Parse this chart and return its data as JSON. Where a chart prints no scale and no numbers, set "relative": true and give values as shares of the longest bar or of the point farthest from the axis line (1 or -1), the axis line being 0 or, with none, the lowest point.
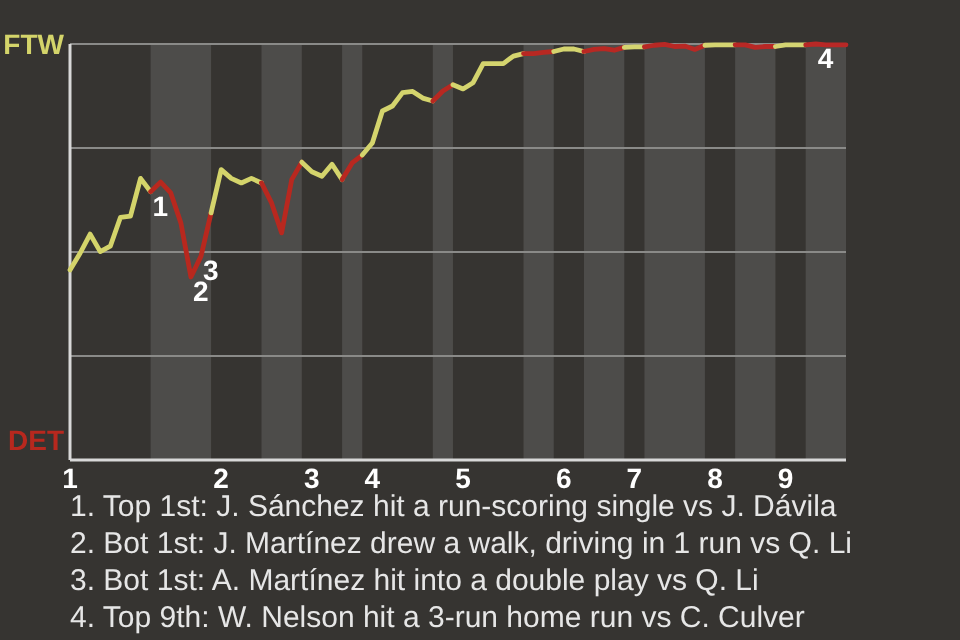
{
  "chart_data": {
    "type": "line",
    "relative": true,
    "grid": "y",
    "marker": "none",
    "line_style": "solid",
    "categories": [
      "1",
      null,
      null,
      null,
      null,
      null,
      null,
      null,
      null,
      null,
      null,
      null,
      null,
      null,
      null,
      "2",
      null,
      null,
      null,
      null,
      null,
      null,
      null,
      null,
      "3",
      null,
      null,
      null,
      null,
      null,
      "4",
      null,
      null,
      null,
      null,
      null,
      null,
      null,
      null,
      "5",
      null,
      null,
      null,
      null,
      null,
      null,
      null,
      null,
      null,
      "6",
      null,
      null,
      null,
      null,
      null,
      null,
      "7",
      null,
      null,
      null,
      null,
      null,
      null,
      null,
      "8",
      null,
      null,
      null,
      null,
      null,
      null,
      "9",
      null,
      null,
      null,
      null,
      null,
      null
    ],
    "series": [
      {
        "name": "FTW",
        "color": "#d4d46a",
        "values": [
          0.457,
          0.497,
          0.543,
          0.501,
          0.514,
          0.583,
          0.586,
          0.677,
          0.645,
          null,
          null,
          null,
          null,
          null,
          null,
          null,
          null,
          null,
          null,
          null,
          null,
          null,
          null,
          null,
          null,
          null,
          null,
          null,
          null,
          null,
          null,
          null,
          null,
          null,
          null,
          null,
          null,
          null,
          null,
          null,
          null,
          null,
          null,
          null,
          null,
          null,
          null,
          null,
          null,
          null,
          null,
          null,
          null,
          null,
          null,
          null,
          null,
          null,
          null,
          null,
          null,
          null,
          null,
          null,
          null,
          null,
          null,
          null,
          null,
          null,
          null,
          null,
          null,
          null,
          null,
          null,
          null,
          null
        ]
      },
      {
        "name": "DET",
        "color": "#b8281e",
        "values": [
          null,
          null,
          null,
          null,
          null,
          null,
          null,
          null,
          0.645,
          0.668,
          0.642,
          0.57,
          0.44,
          0.49,
          0.594,
          null,
          null,
          null,
          null,
          null,
          null,
          null,
          null,
          null,
          null,
          null,
          null,
          null,
          null,
          null,
          null,
          null,
          null,
          null,
          null,
          null,
          null,
          null,
          null,
          null,
          null,
          null,
          null,
          null,
          null,
          null,
          null,
          null,
          null,
          null,
          null,
          null,
          null,
          null,
          null,
          null,
          null,
          null,
          null,
          null,
          null,
          null,
          null,
          null,
          null,
          null,
          null,
          null,
          null,
          null,
          null,
          null,
          null,
          null,
          null,
          null,
          null,
          null
        ]
      },
      {
        "color": "#d4d46b",
        "values": [
          null,
          null,
          null,
          null,
          null,
          null,
          null,
          null,
          null,
          null,
          null,
          null,
          null,
          null,
          0.594,
          0.698,
          0.677,
          0.666,
          0.677,
          0.666,
          null,
          null,
          null,
          null,
          null,
          null,
          null,
          null,
          null,
          null,
          null,
          null,
          null,
          null,
          null,
          null,
          null,
          null,
          null,
          null,
          null,
          null,
          null,
          null,
          null,
          null,
          null,
          null,
          null,
          null,
          null,
          null,
          null,
          null,
          null,
          null,
          null,
          null,
          null,
          null,
          null,
          null,
          null,
          null,
          null,
          null,
          null,
          null,
          null,
          null,
          null,
          null,
          null,
          null,
          null,
          null,
          null,
          null
        ]
      },
      {
        "color": "#b8281f",
        "values": [
          null,
          null,
          null,
          null,
          null,
          null,
          null,
          null,
          null,
          null,
          null,
          null,
          null,
          null,
          null,
          null,
          null,
          null,
          null,
          0.666,
          0.618,
          0.546,
          0.674,
          0.716,
          null,
          null,
          null,
          null,
          null,
          null,
          null,
          null,
          null,
          null,
          null,
          null,
          null,
          null,
          null,
          null,
          null,
          null,
          null,
          null,
          null,
          null,
          null,
          null,
          null,
          null,
          null,
          null,
          null,
          null,
          null,
          null,
          null,
          null,
          null,
          null,
          null,
          null,
          null,
          null,
          null,
          null,
          null,
          null,
          null,
          null,
          null,
          null,
          null,
          null,
          null,
          null,
          null,
          null
        ]
      },
      {
        "color": "#d4d46c",
        "values": [
          null,
          null,
          null,
          null,
          null,
          null,
          null,
          null,
          null,
          null,
          null,
          null,
          null,
          null,
          null,
          null,
          null,
          null,
          null,
          null,
          null,
          null,
          null,
          0.716,
          0.693,
          0.682,
          0.711,
          0.674,
          null,
          null,
          null,
          null,
          null,
          null,
          null,
          null,
          null,
          null,
          null,
          null,
          null,
          null,
          null,
          null,
          null,
          null,
          null,
          null,
          null,
          null,
          null,
          null,
          null,
          null,
          null,
          null,
          null,
          null,
          null,
          null,
          null,
          null,
          null,
          null,
          null,
          null,
          null,
          null,
          null,
          null,
          null,
          null,
          null,
          null,
          null,
          null,
          null,
          null
        ]
      },
      {
        "color": "#b82820",
        "values": [
          null,
          null,
          null,
          null,
          null,
          null,
          null,
          null,
          null,
          null,
          null,
          null,
          null,
          null,
          null,
          null,
          null,
          null,
          null,
          null,
          null,
          null,
          null,
          null,
          null,
          null,
          null,
          0.674,
          0.714,
          0.733,
          null,
          null,
          null,
          null,
          null,
          null,
          null,
          null,
          null,
          null,
          null,
          null,
          null,
          null,
          null,
          null,
          null,
          null,
          null,
          null,
          null,
          null,
          null,
          null,
          null,
          null,
          null,
          null,
          null,
          null,
          null,
          null,
          null,
          null,
          null,
          null,
          null,
          null,
          null,
          null,
          null,
          null,
          null,
          null,
          null,
          null,
          null,
          null
        ]
      },
      {
        "color": "#d4d46d",
        "values": [
          null,
          null,
          null,
          null,
          null,
          null,
          null,
          null,
          null,
          null,
          null,
          null,
          null,
          null,
          null,
          null,
          null,
          null,
          null,
          null,
          null,
          null,
          null,
          null,
          null,
          null,
          null,
          null,
          null,
          0.733,
          0.762,
          0.839,
          0.851,
          0.883,
          0.886,
          0.87,
          0.863,
          null,
          null,
          null,
          null,
          null,
          null,
          null,
          null,
          null,
          null,
          null,
          null,
          null,
          null,
          null,
          null,
          null,
          null,
          null,
          null,
          null,
          null,
          null,
          null,
          null,
          null,
          null,
          null,
          null,
          null,
          null,
          null,
          null,
          null,
          null,
          null,
          null,
          null,
          null,
          null,
          null
        ]
      },
      {
        "color": "#b82821",
        "values": [
          null,
          null,
          null,
          null,
          null,
          null,
          null,
          null,
          null,
          null,
          null,
          null,
          null,
          null,
          null,
          null,
          null,
          null,
          null,
          null,
          null,
          null,
          null,
          null,
          null,
          null,
          null,
          null,
          null,
          null,
          null,
          null,
          null,
          null,
          null,
          null,
          0.863,
          0.887,
          0.902,
          null,
          null,
          null,
          null,
          null,
          null,
          null,
          null,
          null,
          null,
          null,
          null,
          null,
          null,
          null,
          null,
          null,
          null,
          null,
          null,
          null,
          null,
          null,
          null,
          null,
          null,
          null,
          null,
          null,
          null,
          null,
          null,
          null,
          null,
          null,
          null,
          null,
          null,
          null
        ]
      },
      {
        "color": "#d4d46e",
        "values": [
          null,
          null,
          null,
          null,
          null,
          null,
          null,
          null,
          null,
          null,
          null,
          null,
          null,
          null,
          null,
          null,
          null,
          null,
          null,
          null,
          null,
          null,
          null,
          null,
          null,
          null,
          null,
          null,
          null,
          null,
          null,
          null,
          null,
          null,
          null,
          null,
          null,
          null,
          0.902,
          0.892,
          0.907,
          0.953,
          0.953,
          0.953,
          0.971,
          0.977,
          null,
          null,
          null,
          null,
          null,
          null,
          null,
          null,
          null,
          null,
          null,
          null,
          null,
          null,
          null,
          null,
          null,
          null,
          null,
          null,
          null,
          null,
          null,
          null,
          null,
          null,
          null,
          null,
          null,
          null,
          null,
          null
        ]
      },
      {
        "color": "#b82822",
        "values": [
          null,
          null,
          null,
          null,
          null,
          null,
          null,
          null,
          null,
          null,
          null,
          null,
          null,
          null,
          null,
          null,
          null,
          null,
          null,
          null,
          null,
          null,
          null,
          null,
          null,
          null,
          null,
          null,
          null,
          null,
          null,
          null,
          null,
          null,
          null,
          null,
          null,
          null,
          null,
          null,
          null,
          null,
          null,
          null,
          null,
          0.977,
          0.977,
          0.98,
          0.982,
          null,
          null,
          null,
          null,
          null,
          null,
          null,
          null,
          null,
          null,
          null,
          null,
          null,
          null,
          null,
          null,
          null,
          null,
          null,
          null,
          null,
          null,
          null,
          null,
          null,
          null,
          null,
          null,
          null
        ]
      },
      {
        "color": "#d4d46f",
        "values": [
          null,
          null,
          null,
          null,
          null,
          null,
          null,
          null,
          null,
          null,
          null,
          null,
          null,
          null,
          null,
          null,
          null,
          null,
          null,
          null,
          null,
          null,
          null,
          null,
          null,
          null,
          null,
          null,
          null,
          null,
          null,
          null,
          null,
          null,
          null,
          null,
          null,
          null,
          null,
          null,
          null,
          null,
          null,
          null,
          null,
          null,
          null,
          null,
          0.982,
          0.988,
          0.988,
          0.982,
          null,
          null,
          null,
          null,
          null,
          null,
          null,
          null,
          null,
          null,
          null,
          null,
          null,
          null,
          null,
          null,
          null,
          null,
          null,
          null,
          null,
          null,
          null,
          null,
          null,
          null
        ]
      },
      {
        "color": "#b82823",
        "values": [
          null,
          null,
          null,
          null,
          null,
          null,
          null,
          null,
          null,
          null,
          null,
          null,
          null,
          null,
          null,
          null,
          null,
          null,
          null,
          null,
          null,
          null,
          null,
          null,
          null,
          null,
          null,
          null,
          null,
          null,
          null,
          null,
          null,
          null,
          null,
          null,
          null,
          null,
          null,
          null,
          null,
          null,
          null,
          null,
          null,
          null,
          null,
          null,
          null,
          null,
          null,
          0.982,
          0.987,
          0.989,
          0.985,
          0.992,
          null,
          null,
          null,
          null,
          null,
          null,
          null,
          null,
          null,
          null,
          null,
          null,
          null,
          null,
          null,
          null,
          null,
          null,
          null,
          null,
          null,
          null
        ]
      },
      {
        "color": "#d4d470",
        "values": [
          null,
          null,
          null,
          null,
          null,
          null,
          null,
          null,
          null,
          null,
          null,
          null,
          null,
          null,
          null,
          null,
          null,
          null,
          null,
          null,
          null,
          null,
          null,
          null,
          null,
          null,
          null,
          null,
          null,
          null,
          null,
          null,
          null,
          null,
          null,
          null,
          null,
          null,
          null,
          null,
          null,
          null,
          null,
          null,
          null,
          null,
          null,
          null,
          null,
          null,
          null,
          null,
          null,
          null,
          null,
          0.992,
          0.993,
          0.993,
          null,
          null,
          null,
          null,
          null,
          null,
          null,
          null,
          null,
          null,
          null,
          null,
          null,
          null,
          null,
          null,
          null,
          null,
          null,
          null
        ]
      },
      {
        "color": "#b82824",
        "values": [
          null,
          null,
          null,
          null,
          null,
          null,
          null,
          null,
          null,
          null,
          null,
          null,
          null,
          null,
          null,
          null,
          null,
          null,
          null,
          null,
          null,
          null,
          null,
          null,
          null,
          null,
          null,
          null,
          null,
          null,
          null,
          null,
          null,
          null,
          null,
          null,
          null,
          null,
          null,
          null,
          null,
          null,
          null,
          null,
          null,
          null,
          null,
          null,
          null,
          null,
          null,
          null,
          null,
          null,
          null,
          null,
          null,
          0.993,
          0.997,
          0.999,
          0.994,
          0.995,
          0.987,
          0.997,
          null,
          null,
          null,
          null,
          null,
          null,
          null,
          null,
          null,
          null,
          null,
          null,
          null,
          null
        ]
      },
      {
        "color": "#d4d471",
        "values": [
          null,
          null,
          null,
          null,
          null,
          null,
          null,
          null,
          null,
          null,
          null,
          null,
          null,
          null,
          null,
          null,
          null,
          null,
          null,
          null,
          null,
          null,
          null,
          null,
          null,
          null,
          null,
          null,
          null,
          null,
          null,
          null,
          null,
          null,
          null,
          null,
          null,
          null,
          null,
          null,
          null,
          null,
          null,
          null,
          null,
          null,
          null,
          null,
          null,
          null,
          null,
          null,
          null,
          null,
          null,
          null,
          null,
          null,
          null,
          null,
          null,
          null,
          null,
          0.997,
          0.998,
          0.998,
          0.998,
          null,
          null,
          null,
          null,
          null,
          null,
          null,
          null,
          null,
          null,
          null
        ]
      },
      {
        "color": "#b82825",
        "values": [
          null,
          null,
          null,
          null,
          null,
          null,
          null,
          null,
          null,
          null,
          null,
          null,
          null,
          null,
          null,
          null,
          null,
          null,
          null,
          null,
          null,
          null,
          null,
          null,
          null,
          null,
          null,
          null,
          null,
          null,
          null,
          null,
          null,
          null,
          null,
          null,
          null,
          null,
          null,
          null,
          null,
          null,
          null,
          null,
          null,
          null,
          null,
          null,
          null,
          null,
          null,
          null,
          null,
          null,
          null,
          null,
          null,
          null,
          null,
          null,
          null,
          null,
          null,
          null,
          null,
          null,
          0.998,
          0.998,
          0.992,
          0.994,
          0.994,
          null,
          null,
          null,
          null,
          null,
          null,
          null
        ]
      },
      {
        "color": "#d4d472",
        "values": [
          null,
          null,
          null,
          null,
          null,
          null,
          null,
          null,
          null,
          null,
          null,
          null,
          null,
          null,
          null,
          null,
          null,
          null,
          null,
          null,
          null,
          null,
          null,
          null,
          null,
          null,
          null,
          null,
          null,
          null,
          null,
          null,
          null,
          null,
          null,
          null,
          null,
          null,
          null,
          null,
          null,
          null,
          null,
          null,
          null,
          null,
          null,
          null,
          null,
          null,
          null,
          null,
          null,
          null,
          null,
          null,
          null,
          null,
          null,
          null,
          null,
          null,
          null,
          null,
          null,
          null,
          null,
          null,
          null,
          null,
          0.994,
          0.998,
          0.998,
          0.998,
          null,
          null,
          null,
          null
        ]
      },
      {
        "color": "#b82826",
        "values": [
          null,
          null,
          null,
          null,
          null,
          null,
          null,
          null,
          null,
          null,
          null,
          null,
          null,
          null,
          null,
          null,
          null,
          null,
          null,
          null,
          null,
          null,
          null,
          null,
          null,
          null,
          null,
          null,
          null,
          null,
          null,
          null,
          null,
          null,
          null,
          null,
          null,
          null,
          null,
          null,
          null,
          null,
          null,
          null,
          null,
          null,
          null,
          null,
          null,
          null,
          null,
          null,
          null,
          null,
          null,
          null,
          null,
          null,
          null,
          null,
          null,
          null,
          null,
          null,
          null,
          null,
          null,
          null,
          null,
          null,
          null,
          null,
          null,
          0.998,
          1,
          0.998,
          0.998,
          0.998
        ]
      }
    ],
    "annotations": [
      {
        "text": "1",
        "y": 0.645
      },
      {
        "text": "2",
        "y": 0.44
      },
      {
        "text": "3",
        "y": 0.49
      },
      {
        "text": "4",
        "y": 1
      },
      "1. Top 1st: J. Sánchez hit a run-scoring single vs J. Dávila",
      "2. Bot 1st: J. Martínez drew a walk, driving in 1 run vs Q. Li",
      "3. Bot 1st: A. Martínez hit into a double play vs Q. Li",
      "4. Top 9th: W. Nelson hit a 3-run home run vs C. Culver"
    ]
  }
}
